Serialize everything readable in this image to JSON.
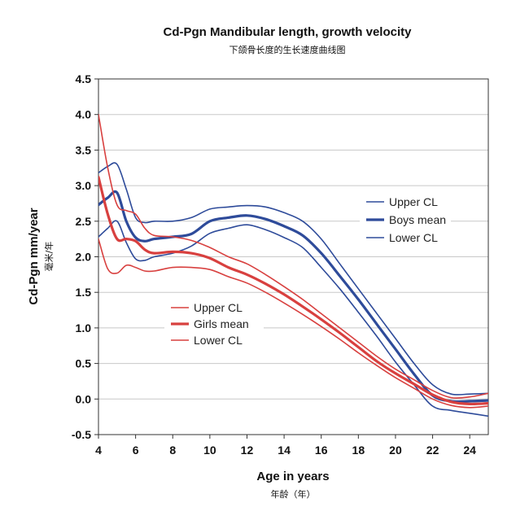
{
  "chart_data": {
    "type": "line",
    "title": "Cd-Pgn Mandibular length, growth velocity",
    "subtitle": "下颌骨长度的生长速度曲线图",
    "xlabel": "Age in years",
    "xlabel_sub": "年龄（年）",
    "ylabel": "Cd-Pgn  mm/year",
    "ylabel_sub": "毫米/年",
    "xlim": [
      4,
      25
    ],
    "ylim": [
      -0.5,
      4.5
    ],
    "x_ticks": [
      "4",
      "6",
      "8",
      "10",
      "12",
      "14",
      "16",
      "18",
      "20",
      "22",
      "24"
    ],
    "y_ticks": [
      "-0.5",
      "0.0",
      "0.5",
      "1.0",
      "1.5",
      "2.0",
      "2.5",
      "3.0",
      "3.5",
      "4.0",
      "4.5"
    ],
    "grid": "horizontal",
    "colors": {
      "boys": "#2e4b9a",
      "girls": "#d8403f"
    },
    "legends": [
      {
        "group": "boys",
        "placement": "right-middle",
        "items": [
          "Upper CL",
          "Boys mean",
          "Lower CL"
        ]
      },
      {
        "group": "girls",
        "placement": "left-middle",
        "items": [
          "Upper CL",
          "Girls mean",
          "Lower CL"
        ]
      }
    ],
    "series": [
      {
        "name": "Upper CL",
        "group": "boys",
        "role": "cl",
        "points": [
          [
            4,
            3.18
          ],
          [
            4.5,
            3.27
          ],
          [
            5,
            3.3
          ],
          [
            5.5,
            2.95
          ],
          [
            6,
            2.55
          ],
          [
            6.5,
            2.48
          ],
          [
            7,
            2.5
          ],
          [
            8,
            2.5
          ],
          [
            9,
            2.55
          ],
          [
            10,
            2.67
          ],
          [
            11,
            2.7
          ],
          [
            12,
            2.72
          ],
          [
            13,
            2.7
          ],
          [
            14,
            2.62
          ],
          [
            15,
            2.5
          ],
          [
            16,
            2.25
          ],
          [
            17,
            1.9
          ],
          [
            18,
            1.55
          ],
          [
            19,
            1.2
          ],
          [
            20,
            0.85
          ],
          [
            21,
            0.5
          ],
          [
            22,
            0.2
          ],
          [
            23,
            0.07
          ],
          [
            24,
            0.07
          ],
          [
            25,
            0.08
          ]
        ]
      },
      {
        "name": "Boys mean",
        "group": "boys",
        "role": "mean",
        "points": [
          [
            4,
            2.73
          ],
          [
            4.5,
            2.83
          ],
          [
            5,
            2.9
          ],
          [
            5.5,
            2.5
          ],
          [
            6,
            2.27
          ],
          [
            6.5,
            2.22
          ],
          [
            7,
            2.25
          ],
          [
            8,
            2.28
          ],
          [
            9,
            2.32
          ],
          [
            10,
            2.5
          ],
          [
            11,
            2.55
          ],
          [
            12,
            2.58
          ],
          [
            13,
            2.53
          ],
          [
            14,
            2.43
          ],
          [
            15,
            2.3
          ],
          [
            16,
            2.05
          ],
          [
            17,
            1.73
          ],
          [
            18,
            1.4
          ],
          [
            19,
            1.05
          ],
          [
            20,
            0.7
          ],
          [
            21,
            0.35
          ],
          [
            22,
            0.05
          ],
          [
            23,
            -0.03
          ],
          [
            24,
            -0.03
          ],
          [
            25,
            -0.02
          ]
        ]
      },
      {
        "name": "Lower CL",
        "group": "boys",
        "role": "cl",
        "points": [
          [
            4,
            2.28
          ],
          [
            4.5,
            2.4
          ],
          [
            5,
            2.5
          ],
          [
            5.5,
            2.2
          ],
          [
            6,
            1.97
          ],
          [
            6.5,
            1.95
          ],
          [
            7,
            2.0
          ],
          [
            8,
            2.05
          ],
          [
            9,
            2.15
          ],
          [
            10,
            2.33
          ],
          [
            11,
            2.4
          ],
          [
            12,
            2.45
          ],
          [
            13,
            2.38
          ],
          [
            14,
            2.27
          ],
          [
            15,
            2.13
          ],
          [
            16,
            1.85
          ],
          [
            17,
            1.55
          ],
          [
            18,
            1.22
          ],
          [
            19,
            0.88
          ],
          [
            20,
            0.52
          ],
          [
            21,
            0.2
          ],
          [
            22,
            -0.1
          ],
          [
            23,
            -0.16
          ],
          [
            24,
            -0.2
          ],
          [
            25,
            -0.24
          ]
        ]
      },
      {
        "name": "Upper CL",
        "group": "girls",
        "role": "cl",
        "points": [
          [
            4,
            4.0
          ],
          [
            4.5,
            3.25
          ],
          [
            5,
            2.73
          ],
          [
            5.5,
            2.65
          ],
          [
            6,
            2.6
          ],
          [
            6.5,
            2.4
          ],
          [
            7,
            2.3
          ],
          [
            8,
            2.28
          ],
          [
            9,
            2.23
          ],
          [
            10,
            2.13
          ],
          [
            11,
            2.0
          ],
          [
            12,
            1.9
          ],
          [
            13,
            1.75
          ],
          [
            14,
            1.58
          ],
          [
            15,
            1.4
          ],
          [
            16,
            1.2
          ],
          [
            17,
            1.0
          ],
          [
            18,
            0.8
          ],
          [
            19,
            0.6
          ],
          [
            20,
            0.42
          ],
          [
            21,
            0.27
          ],
          [
            22,
            0.12
          ],
          [
            23,
            0.02
          ],
          [
            24,
            0.03
          ],
          [
            25,
            0.08
          ]
        ]
      },
      {
        "name": "Girls mean",
        "group": "girls",
        "role": "mean",
        "points": [
          [
            4,
            3.12
          ],
          [
            4.5,
            2.6
          ],
          [
            5,
            2.25
          ],
          [
            5.5,
            2.25
          ],
          [
            6,
            2.22
          ],
          [
            6.5,
            2.1
          ],
          [
            7,
            2.05
          ],
          [
            8,
            2.07
          ],
          [
            9,
            2.05
          ],
          [
            10,
            1.98
          ],
          [
            11,
            1.85
          ],
          [
            12,
            1.75
          ],
          [
            13,
            1.62
          ],
          [
            14,
            1.47
          ],
          [
            15,
            1.3
          ],
          [
            16,
            1.12
          ],
          [
            17,
            0.93
          ],
          [
            18,
            0.73
          ],
          [
            19,
            0.53
          ],
          [
            20,
            0.36
          ],
          [
            21,
            0.21
          ],
          [
            22,
            0.06
          ],
          [
            23,
            -0.04
          ],
          [
            24,
            -0.07
          ],
          [
            25,
            -0.06
          ]
        ]
      },
      {
        "name": "Lower CL",
        "group": "girls",
        "role": "cl",
        "points": [
          [
            4,
            2.25
          ],
          [
            4.5,
            1.83
          ],
          [
            5,
            1.77
          ],
          [
            5.5,
            1.88
          ],
          [
            6,
            1.85
          ],
          [
            6.5,
            1.8
          ],
          [
            7,
            1.8
          ],
          [
            8,
            1.85
          ],
          [
            9,
            1.85
          ],
          [
            10,
            1.82
          ],
          [
            11,
            1.72
          ],
          [
            12,
            1.63
          ],
          [
            13,
            1.5
          ],
          [
            14,
            1.35
          ],
          [
            15,
            1.19
          ],
          [
            16,
            1.02
          ],
          [
            17,
            0.84
          ],
          [
            18,
            0.65
          ],
          [
            19,
            0.47
          ],
          [
            20,
            0.3
          ],
          [
            21,
            0.15
          ],
          [
            22,
            0.0
          ],
          [
            23,
            -0.09
          ],
          [
            24,
            -0.12
          ],
          [
            25,
            -0.1
          ]
        ]
      }
    ]
  }
}
